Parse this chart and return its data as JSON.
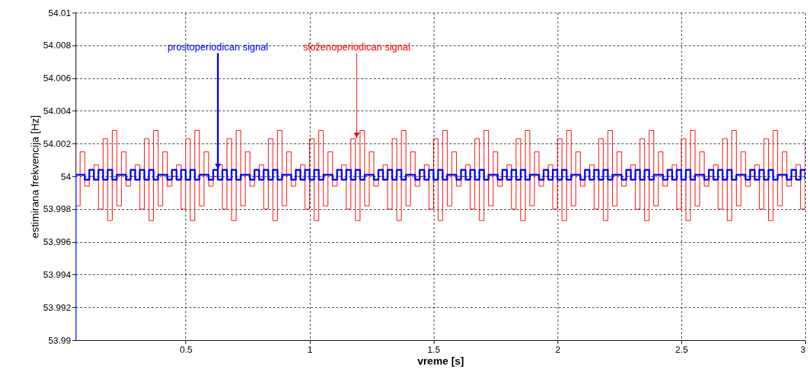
{
  "chart_data": {
    "type": "step",
    "xlabel": "vreme [s]",
    "ylabel": "estimirana frekvencija [Hz]",
    "annotations": [
      {
        "text": "prostoperiodican signal",
        "x": 0.63,
        "y": 54.0004
      },
      {
        "text": "složenoperiodican signal",
        "x": 1.19,
        "y": 54.0023
      }
    ],
    "x": [
      0.0556,
      0.0741,
      0.0926,
      0.1111,
      0.1296,
      0.1481,
      0.1667,
      0.1852,
      0.2037,
      0.2222,
      0.2407,
      0.2593,
      0.2778,
      0.2963,
      0.3148,
      0.3333,
      0.3519,
      0.3704,
      0.3889,
      0.4074,
      0.4259,
      0.4444,
      0.463,
      0.4815,
      0.5,
      0.5185,
      0.537,
      0.5556,
      0.5741,
      0.5926,
      0.6111,
      0.6296,
      0.6481,
      0.6667,
      0.6852,
      0.7037,
      0.7222,
      0.7407,
      0.7593,
      0.7778,
      0.7963,
      0.8148,
      0.8333,
      0.8519,
      0.8704,
      0.8889,
      0.9074,
      0.9259,
      0.9444,
      0.963,
      0.9815,
      1,
      1.0185,
      1.037,
      1.0556,
      1.0741,
      1.0926,
      1.1111,
      1.1296,
      1.1481,
      1.1667,
      1.1852,
      1.2037,
      1.2222,
      1.2407,
      1.2593,
      1.2778,
      1.2963,
      1.3148,
      1.3333,
      1.3519,
      1.3704,
      1.3889,
      1.4074,
      1.4259,
      1.4444,
      1.463,
      1.4815,
      1.5,
      1.5185,
      1.537,
      1.5556,
      1.5741,
      1.5926,
      1.6111,
      1.6296,
      1.6481,
      1.6667,
      1.6852,
      1.7037,
      1.7222,
      1.7407,
      1.7593,
      1.7778,
      1.7963,
      1.8148,
      1.8333,
      1.8519,
      1.8704,
      1.8889,
      1.9074,
      1.9259,
      1.9444,
      1.963,
      1.9815,
      2,
      2.0185,
      2.037,
      2.0556,
      2.0741,
      2.0926,
      2.1111,
      2.1296,
      2.1481,
      2.1667,
      2.1852,
      2.2037,
      2.2222,
      2.2407,
      2.2593,
      2.2778,
      2.2963,
      2.3148,
      2.3333,
      2.3519,
      2.3704,
      2.3889,
      2.4074,
      2.4259,
      2.4444,
      2.463,
      2.4815,
      2.5,
      2.5185,
      2.537,
      2.5556,
      2.5741,
      2.5926,
      2.6111,
      2.6296,
      2.6481,
      2.6667,
      2.6852,
      2.7037,
      2.7222,
      2.7407,
      2.7593,
      2.7778,
      2.7963,
      2.8148,
      2.8333,
      2.8519,
      2.8704,
      2.8889,
      2.9074,
      2.9259,
      2.9444,
      2.963,
      2.9815,
      3
    ],
    "series": [
      {
        "color": "#0000ff",
        "x": [
          0.0556,
          0.0556,
          0.0741,
          0.0926,
          0.1111,
          0.1296,
          0.1481,
          0.1667,
          0.1852,
          0.2037,
          0.2222,
          0.2407,
          0.2593,
          0.2778,
          0.2963,
          0.3148,
          0.3333,
          0.3519,
          0.3704,
          0.3889,
          0.4074,
          0.4259,
          0.4444,
          0.463,
          0.4815,
          0.5,
          0.5185,
          0.537,
          0.5556,
          0.5741,
          0.5926,
          0.6111,
          0.6296,
          0.6481,
          0.6667,
          0.6852,
          0.7037,
          0.7222,
          0.7407,
          0.7593,
          0.7778,
          0.7963,
          0.8148,
          0.8333,
          0.8519,
          0.8704,
          0.8889,
          0.9074,
          0.9259,
          0.9444,
          0.963,
          0.9815,
          1,
          1.0185,
          1.037,
          1.0556,
          1.0741,
          1.0926,
          1.1111,
          1.1296,
          1.1481,
          1.1667,
          1.1852,
          1.2037,
          1.2222,
          1.2407,
          1.2593,
          1.2778,
          1.2963,
          1.3148,
          1.3333,
          1.3519,
          1.3704,
          1.3889,
          1.4074,
          1.4259,
          1.4444,
          1.463,
          1.4815,
          1.5,
          1.5185,
          1.537,
          1.5556,
          1.5741,
          1.5926,
          1.6111,
          1.6296,
          1.6481,
          1.6667,
          1.6852,
          1.7037,
          1.7222,
          1.7407,
          1.7593,
          1.7778,
          1.7963,
          1.8148,
          1.8333,
          1.8519,
          1.8704,
          1.8889,
          1.9074,
          1.9259,
          1.9444,
          1.963,
          1.9815,
          2,
          2.0185,
          2.037,
          2.0556,
          2.0741,
          2.0926,
          2.1111,
          2.1296,
          2.1481,
          2.1667,
          2.1852,
          2.2037,
          2.2222,
          2.2407,
          2.2593,
          2.2778,
          2.2963,
          2.3148,
          2.3333,
          2.3519,
          2.3704,
          2.3889,
          2.4074,
          2.4259,
          2.4444,
          2.463,
          2.4815,
          2.5,
          2.5185,
          2.537,
          2.5556,
          2.5741,
          2.5926,
          2.6111,
          2.6296,
          2.6481,
          2.6667,
          2.6852,
          2.7037,
          2.7222,
          2.7407,
          2.7593,
          2.7778,
          2.7963,
          2.8148,
          2.8333,
          2.8519,
          2.8704,
          2.8889,
          2.9074,
          2.9259,
          2.9444,
          2.963,
          2.9815,
          3
        ],
        "values": [
          53.99,
          54.0001,
          54.0001,
          53.9998,
          54.0004,
          53.9998,
          54.0004,
          53.9998,
          54.0004,
          53.9998,
          54.0001,
          54.0001,
          53.9998,
          54.0004,
          53.9998,
          54.0004,
          53.9998,
          54.0004,
          53.9998,
          54.0001,
          54.0001,
          53.9998,
          54.0004,
          53.9998,
          54.0004,
          53.9998,
          54.0004,
          53.9998,
          54.0001,
          54.0001,
          53.9998,
          54.0004,
          53.9998,
          54.0004,
          53.9998,
          54.0004,
          53.9998,
          54.0001,
          54.0001,
          53.9998,
          54.0004,
          53.9998,
          54.0004,
          53.9998,
          54.0004,
          53.9998,
          54.0001,
          54.0001,
          53.9998,
          54.0004,
          53.9998,
          54.0004,
          53.9998,
          54.0004,
          53.9998,
          54.0001,
          54.0001,
          53.9998,
          54.0004,
          53.9998,
          54.0004,
          53.9998,
          54.0004,
          53.9998,
          54.0001,
          54.0001,
          53.9998,
          54.0004,
          53.9998,
          54.0004,
          53.9998,
          54.0004,
          53.9998,
          54.0001,
          54.0001,
          53.9998,
          54.0004,
          53.9998,
          54.0004,
          53.9998,
          54.0004,
          53.9998,
          54.0001,
          54.0001,
          53.9998,
          54.0004,
          53.9998,
          54.0004,
          53.9998,
          54.0004,
          53.9998,
          54.0001,
          54.0001,
          53.9998,
          54.0004,
          53.9998,
          54.0004,
          53.9998,
          54.0004,
          53.9998,
          54.0001,
          54.0001,
          53.9998,
          54.0004,
          53.9998,
          54.0004,
          53.9998,
          54.0004,
          53.9998,
          54.0001,
          54.0001,
          53.9998,
          54.0004,
          53.9998,
          54.0004,
          53.9998,
          54.0004,
          53.9998,
          54.0001,
          54.0001,
          53.9998,
          54.0004,
          53.9998,
          54.0004,
          53.9998,
          54.0004,
          53.9998,
          54.0001,
          54.0001,
          53.9998,
          54.0004,
          53.9998,
          54.0004,
          53.9998,
          54.0004,
          53.9998,
          54.0001,
          54.0001,
          53.9998,
          54.0004,
          53.9998,
          54.0004,
          53.9998,
          54.0004,
          53.9998,
          54.0001,
          54.0001,
          53.9998,
          54.0004,
          53.9998,
          54.0004,
          53.9998,
          54.0004,
          53.9998,
          54.0001,
          54.0001,
          53.9998,
          54.0004,
          53.9998,
          54.0004,
          53.9998
        ]
      },
      {
        "color": "#ff0000",
        "values": [
          53.9982,
          54.0015,
          53.9994,
          54.0,
          54.0007,
          53.998,
          54.0023,
          53.9973,
          54.0028,
          53.9982,
          54.0015,
          53.9994,
          54.0,
          54.0007,
          53.998,
          54.0023,
          53.9973,
          54.0028,
          53.9982,
          54.0015,
          53.9994,
          54.0,
          54.0007,
          53.998,
          54.0023,
          53.9973,
          54.0028,
          53.9982,
          54.0015,
          53.9994,
          54.0,
          54.0007,
          53.998,
          54.0023,
          53.9973,
          54.0028,
          53.9982,
          54.0015,
          53.9994,
          54.0,
          54.0007,
          53.998,
          54.0023,
          53.9973,
          54.0028,
          53.9982,
          54.0015,
          53.9994,
          54.0,
          54.0007,
          53.998,
          54.0023,
          53.9973,
          54.0028,
          53.9982,
          54.0015,
          53.9994,
          54.0,
          54.0007,
          53.998,
          54.0023,
          53.9973,
          54.0028,
          53.9982,
          54.0015,
          53.9994,
          54.0,
          54.0007,
          53.998,
          54.0023,
          53.9973,
          54.0028,
          53.9982,
          54.0015,
          53.9994,
          54.0,
          54.0007,
          53.998,
          54.0023,
          53.9973,
          54.0028,
          53.9982,
          54.0015,
          53.9994,
          54.0,
          54.0007,
          53.998,
          54.0023,
          53.9973,
          54.0028,
          53.9982,
          54.0015,
          53.9994,
          54.0,
          54.0007,
          53.998,
          54.0023,
          53.9973,
          54.0028,
          53.9982,
          54.0015,
          53.9994,
          54.0,
          54.0007,
          53.998,
          54.0023,
          53.9973,
          54.0028,
          53.9982,
          54.0015,
          53.9994,
          54.0,
          54.0007,
          53.998,
          54.0023,
          53.9973,
          54.0028,
          53.9982,
          54.0015,
          53.9994,
          54.0,
          54.0007,
          53.998,
          54.0023,
          53.9973,
          54.0028,
          53.9982,
          54.0015,
          53.9994,
          54.0,
          54.0007,
          53.998,
          54.0023,
          53.9973,
          54.0028,
          53.9982,
          54.0015,
          53.9994,
          54.0,
          54.0007,
          53.998,
          54.0023,
          53.9973,
          54.0028,
          53.9982,
          54.0015,
          53.9994,
          54.0,
          54.0007,
          53.998,
          54.0023,
          53.9973,
          54.0028,
          53.9982,
          54.0015,
          53.9994,
          54.0,
          54.0007,
          53.998,
          54.0023
        ]
      }
    ],
    "xlim": [
      0.0556,
      3
    ],
    "xticks": [
      0.5,
      1,
      1.5,
      2,
      2.5,
      3
    ],
    "ylim": [
      53.99,
      54.01
    ],
    "yticks": [
      53.99,
      53.992,
      53.994,
      53.996,
      53.998,
      54,
      54.002,
      54.004,
      54.006,
      54.008,
      54.01
    ],
    "grid": true,
    "line_style": "solid"
  }
}
